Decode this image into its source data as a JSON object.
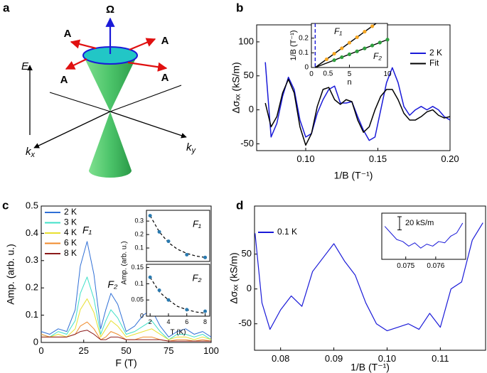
{
  "panels": [
    "a",
    "b",
    "c",
    "d"
  ],
  "diagram": {
    "omega": "Ω",
    "a_labels": [
      "A",
      "A",
      "A",
      "A"
    ],
    "energy": "E",
    "kx": {
      "base": "k",
      "sub": "x"
    },
    "ky": {
      "base": "k",
      "sub": "y"
    }
  },
  "chart_data": [
    {
      "type": "line",
      "xlabel": "1/B (T⁻¹)",
      "ylabel": "Δσₓₓ (kS/m)",
      "x": [
        0.072,
        0.076,
        0.08,
        0.084,
        0.088,
        0.092,
        0.096,
        0.1,
        0.104,
        0.108,
        0.112,
        0.116,
        0.12,
        0.124,
        0.128,
        0.132,
        0.136,
        0.14,
        0.144,
        0.148,
        0.152,
        0.156,
        0.16,
        0.164,
        0.168,
        0.172,
        0.176,
        0.18,
        0.184,
        0.188,
        0.192,
        0.196,
        0.2
      ],
      "series": [
        {
          "name": "2 K",
          "color": "#1a1ad8",
          "values": [
            70,
            -40,
            -20,
            20,
            48,
            30,
            -15,
            -40,
            -35,
            -5,
            15,
            30,
            35,
            10,
            10,
            12,
            -10,
            -30,
            -45,
            -40,
            0,
            40,
            62,
            40,
            5,
            -8,
            0,
            5,
            0,
            5,
            0,
            -10,
            -15
          ]
        },
        {
          "name": "Fit",
          "color": "#000000",
          "values": [
            10,
            -25,
            -10,
            25,
            45,
            25,
            -25,
            -52,
            -35,
            5,
            30,
            33,
            15,
            8,
            15,
            12,
            -15,
            -33,
            -25,
            0,
            20,
            30,
            30,
            15,
            -5,
            -15,
            -15,
            -10,
            -3,
            0,
            -8,
            -12,
            -10
          ]
        }
      ],
      "xlim": [
        0.066,
        0.2
      ],
      "ylim": [
        -60,
        125
      ],
      "xticks": [
        {
          "value": 0.1,
          "label": "0.10"
        },
        0.15,
        {
          "value": 0.2,
          "label": "0.20"
        }
      ],
      "yticks": [
        -50,
        0,
        50,
        100
      ],
      "legend": "upper right"
    },
    {
      "type": "scatter",
      "xlabel": "n",
      "ylabel": "1/B (T⁻¹)",
      "series": [
        {
          "name": "F₁",
          "color": "#f5a623",
          "x": [
            2,
            3,
            4,
            5,
            6,
            7,
            8
          ],
          "values": [
            0.056,
            0.094,
            0.131,
            0.169,
            0.206,
            0.244,
            0.281
          ]
        },
        {
          "name": "F₂",
          "color": "#2e9e3e",
          "x": [
            3,
            4,
            5,
            6,
            7,
            8,
            9,
            10
          ],
          "values": [
            0.05,
            0.07,
            0.09,
            0.11,
            0.13,
            0.15,
            0.17,
            0.19
          ]
        }
      ],
      "fit_lines": [
        {
          "x": [
            0.5,
            8.5
          ],
          "values": [
            0,
            0.3
          ]
        },
        {
          "x": [
            0.5,
            10
          ],
          "values": [
            0,
            0.19
          ]
        }
      ],
      "vline": 0.5,
      "xlim": [
        0,
        10
      ],
      "ylim": [
        0,
        0.3
      ],
      "xticks": [
        0,
        5,
        10
      ],
      "yticks": [
        0,
        0.1,
        0.2
      ]
    },
    {
      "type": "line",
      "xlabel": "F (T)",
      "ylabel": "Amp. (arb. u.)",
      "x": [
        0,
        5,
        10,
        15,
        20,
        23,
        27,
        31,
        35,
        38,
        41,
        45,
        50,
        55,
        60,
        65,
        70,
        75,
        80,
        85,
        90,
        95,
        100
      ],
      "series": [
        {
          "name": "2 K",
          "color": "#2f6fd6",
          "values": [
            0.04,
            0.03,
            0.05,
            0.04,
            0.12,
            0.28,
            0.37,
            0.25,
            0.05,
            0.12,
            0.18,
            0.14,
            0.04,
            0.06,
            0.1,
            0.12,
            0.06,
            0.02,
            0.04,
            0.05,
            0.03,
            0.04,
            0.02
          ]
        },
        {
          "name": "3 K",
          "color": "#3fe0c8",
          "values": [
            0.03,
            0.02,
            0.04,
            0.03,
            0.08,
            0.18,
            0.24,
            0.16,
            0.03,
            0.08,
            0.12,
            0.09,
            0.03,
            0.04,
            0.06,
            0.08,
            0.04,
            0.01,
            0.03,
            0.03,
            0.02,
            0.03,
            0.01
          ]
        },
        {
          "name": "4 K",
          "color": "#e8e030",
          "values": [
            0.02,
            0.02,
            0.03,
            0.02,
            0.05,
            0.12,
            0.16,
            0.11,
            0.02,
            0.05,
            0.08,
            0.06,
            0.02,
            0.03,
            0.04,
            0.05,
            0.03,
            0.01,
            0.02,
            0.02,
            0.01,
            0.02,
            0.01
          ]
        },
        {
          "name": "6 K",
          "color": "#f08a2a",
          "values": [
            0.03,
            0.02,
            0.02,
            0.02,
            0.03,
            0.06,
            0.075,
            0.05,
            0.01,
            0.02,
            0.04,
            0.03,
            0.01,
            0.01,
            0.02,
            0.02,
            0.01,
            0.005,
            0.01,
            0.01,
            0.005,
            0.01,
            0.005
          ]
        },
        {
          "name": "8 K",
          "color": "#8b1a1a",
          "values": [
            0.02,
            0.02,
            0.02,
            0.02,
            0.03,
            0.04,
            0.045,
            0.03,
            0.01,
            0.01,
            0.02,
            0.02,
            0.01,
            0.01,
            0.01,
            0.01,
            0.01,
            0.005,
            0.005,
            0.005,
            0.005,
            0.005,
            0.005
          ]
        }
      ],
      "xlim": [
        0,
        100
      ],
      "ylim": [
        0,
        0.5
      ],
      "xticks": [
        0,
        25,
        50,
        75,
        100
      ],
      "yticks": [
        0,
        0.1,
        0.2,
        0.3,
        0.4,
        0.5
      ],
      "legend": "upper left",
      "annotations": [
        "F₁",
        "F₂"
      ]
    },
    {
      "type": "scatter",
      "title": "F₁",
      "ylabel": "Amp. (arb. u.)",
      "series": [
        {
          "color": "#2a7ab0",
          "x": [
            2,
            3,
            4,
            6,
            8
          ],
          "values": [
            0.34,
            0.22,
            0.15,
            0.05,
            0.03
          ]
        }
      ],
      "fit_lines": [
        {
          "x": [
            2,
            3,
            4,
            5,
            6,
            7,
            8
          ],
          "values": [
            0.34,
            0.22,
            0.14,
            0.09,
            0.06,
            0.04,
            0.03
          ]
        }
      ],
      "xlim": [
        1.6,
        8.5
      ],
      "ylim": [
        0,
        0.38
      ],
      "yticks": [
        0.1,
        0.2,
        0.3
      ]
    },
    {
      "type": "scatter",
      "title": "F₂",
      "xlabel": "T (K)",
      "series": [
        {
          "color": "#2a7ab0",
          "x": [
            2,
            3,
            4,
            6,
            8
          ],
          "values": [
            0.12,
            0.08,
            0.05,
            0.02,
            0.015
          ]
        }
      ],
      "fit_lines": [
        {
          "x": [
            2,
            3,
            4,
            5,
            6,
            7,
            8
          ],
          "values": [
            0.12,
            0.075,
            0.05,
            0.03,
            0.02,
            0.013,
            0.009
          ]
        }
      ],
      "xlim": [
        1.6,
        8.5
      ],
      "ylim": [
        0,
        0.16
      ],
      "xticks": [
        2,
        4,
        6,
        8
      ],
      "yticks": [
        0,
        0.05,
        0.1,
        0.15
      ]
    },
    {
      "type": "line",
      "xlabel": "1/B (T⁻¹)",
      "ylabel": "Δσₓₓ (kS/m)",
      "x": [
        0.0752,
        0.0765,
        0.078,
        0.08,
        0.082,
        0.084,
        0.086,
        0.088,
        0.09,
        0.092,
        0.094,
        0.096,
        0.098,
        0.1,
        0.102,
        0.104,
        0.106,
        0.108,
        0.11,
        0.112,
        0.114,
        0.116,
        0.118
      ],
      "series": [
        {
          "name": "0.1 K",
          "color": "#1a1ad8",
          "values": [
            80,
            -20,
            -58,
            -30,
            -10,
            -25,
            25,
            45,
            65,
            40,
            20,
            -20,
            -50,
            -60,
            -55,
            -50,
            -58,
            -35,
            -55,
            0,
            10,
            70,
            95
          ]
        }
      ],
      "xlim": [
        0.0751,
        0.1185
      ],
      "ylim": [
        -88,
        119
      ],
      "xticks": [
        0.08,
        0.09,
        {
          "value": 0.1,
          "label": "0.10"
        },
        0.11
      ],
      "yticks": [
        -50,
        0,
        50
      ],
      "legend": "upper left"
    },
    {
      "type": "line",
      "x": [
        0.0743,
        0.0745,
        0.0747,
        0.0749,
        0.0751,
        0.0753,
        0.0755,
        0.0757,
        0.0759,
        0.0761,
        0.0763,
        0.0765,
        0.0767,
        0.0769
      ],
      "series": [
        {
          "color": "#1a1ad8",
          "values": [
            5,
            -5,
            -15,
            -18,
            -25,
            -20,
            -28,
            -22,
            -25,
            -18,
            -20,
            -10,
            -5,
            10
          ]
        }
      ],
      "xlim": [
        0.0742,
        0.077
      ],
      "ylim": [
        -45,
        25
      ],
      "xticks": [
        0.075,
        0.076
      ],
      "scalebar": {
        "value": 20,
        "label": "20 kS/m"
      }
    }
  ]
}
